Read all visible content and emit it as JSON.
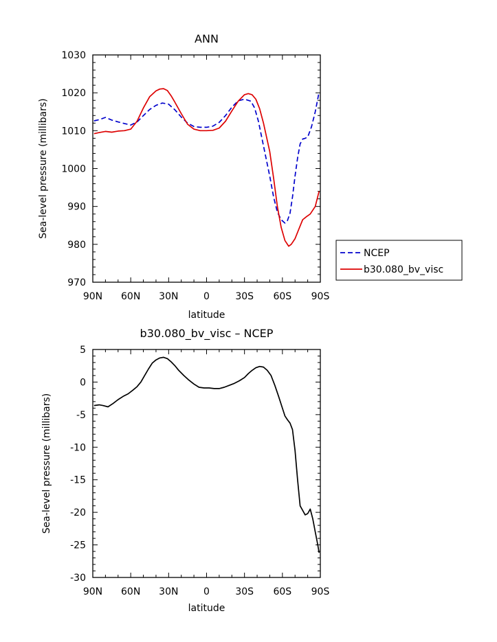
{
  "chart_data": [
    {
      "type": "line",
      "title": "ANN",
      "xlabel": "latitude",
      "ylabel": "Sea-level pressure (millibars)",
      "xlim": [
        90,
        -90
      ],
      "ylim": [
        970,
        1030
      ],
      "x_ticks": [
        90,
        60,
        30,
        0,
        -30,
        -60,
        -90
      ],
      "x_tick_labels": [
        "90N",
        "60N",
        "30N",
        "0",
        "30S",
        "60S",
        "90S"
      ],
      "y_ticks": [
        970,
        980,
        990,
        1000,
        1010,
        1020,
        1030
      ],
      "y_tick_labels": [
        "970",
        "980",
        "990",
        "1000",
        "1010",
        "1020",
        "1030"
      ],
      "grid": false,
      "legend_position": "right, outside plot area",
      "series": [
        {
          "name": "NCEP",
          "color": "#0000cc",
          "dash": "dashed",
          "x": [
            89,
            85,
            80,
            75,
            70,
            65,
            60,
            55,
            50,
            45,
            40,
            35,
            30,
            25,
            20,
            15,
            10,
            5,
            0,
            -5,
            -10,
            -15,
            -20,
            -25,
            -30,
            -35,
            -38,
            -41,
            -45,
            -50,
            -53,
            -56,
            -59,
            -62,
            -64,
            -66,
            -68,
            -70,
            -72,
            -74,
            -76,
            -78,
            -80,
            -83,
            -86,
            -89
          ],
          "y": [
            1012.6,
            1012.9,
            1013.5,
            1012.8,
            1012.3,
            1011.9,
            1011.5,
            1012.3,
            1014.0,
            1015.6,
            1016.7,
            1017.3,
            1017.0,
            1015.5,
            1013.6,
            1012.0,
            1011.1,
            1010.9,
            1010.9,
            1011.2,
            1012.2,
            1014.0,
            1016.2,
            1017.9,
            1018.3,
            1017.8,
            1016.0,
            1012.5,
            1006.0,
            998.0,
            992.5,
            988.5,
            986.5,
            985.6,
            986.3,
            988.2,
            992.5,
            998.0,
            1002.8,
            1006.5,
            1007.8,
            1008.0,
            1008.3,
            1011.0,
            1015.0,
            1020.2
          ]
        },
        {
          "name": "b30.080_bv_visc",
          "color": "#dd0000",
          "dash": "solid",
          "x": [
            89,
            85,
            80,
            75,
            70,
            65,
            60,
            55,
            50,
            45,
            40,
            37,
            34,
            31,
            28,
            25,
            20,
            15,
            10,
            5,
            0,
            -5,
            -10,
            -15,
            -20,
            -25,
            -30,
            -33,
            -36,
            -39,
            -42,
            -45,
            -50,
            -53,
            -56,
            -59,
            -62,
            -65,
            -67,
            -70,
            -73,
            -76,
            -79,
            -82,
            -86,
            -89
          ],
          "y": [
            1009.2,
            1009.5,
            1009.8,
            1009.6,
            1009.9,
            1010.0,
            1010.4,
            1012.5,
            1016.0,
            1019.0,
            1020.5,
            1021.0,
            1021.1,
            1020.6,
            1019.2,
            1017.5,
            1014.5,
            1011.7,
            1010.4,
            1010.0,
            1010.0,
            1010.1,
            1010.7,
            1012.5,
            1015.2,
            1017.8,
            1019.5,
            1019.8,
            1019.5,
            1018.3,
            1015.8,
            1012.0,
            1004.5,
            997.5,
            990.0,
            984.5,
            981.0,
            979.5,
            980.0,
            981.5,
            984.0,
            986.5,
            987.3,
            988.0,
            990.0,
            994.0
          ]
        }
      ]
    },
    {
      "type": "line",
      "title": "b30.080_bv_visc – NCEP",
      "xlabel": "latitude",
      "ylabel": "Sea-level pressure (millibars)",
      "xlim": [
        90,
        -90
      ],
      "ylim": [
        -30,
        5
      ],
      "x_ticks": [
        90,
        60,
        30,
        0,
        -30,
        -60,
        -90
      ],
      "x_tick_labels": [
        "90N",
        "60N",
        "30N",
        "0",
        "30S",
        "60S",
        "90S"
      ],
      "y_ticks": [
        -30,
        -25,
        -20,
        -15,
        -10,
        -5,
        0,
        5
      ],
      "y_tick_labels": [
        "-30",
        "-25",
        "-20",
        "-15",
        "-10",
        "-5",
        "0",
        "5"
      ],
      "grid": false,
      "series": [
        {
          "color": "#000000",
          "dash": "solid",
          "x": [
            89,
            85,
            82,
            78,
            74,
            70,
            66,
            62,
            58,
            55,
            52,
            49,
            46,
            43,
            40,
            37,
            34,
            31,
            28,
            25,
            22,
            18,
            14,
            10,
            6,
            2,
            -2,
            -6,
            -10,
            -14,
            -18,
            -22,
            -26,
            -30,
            -33,
            -36,
            -39,
            -42,
            -45,
            -48,
            -51,
            -54,
            -57,
            -60,
            -62,
            -64,
            -66,
            -68,
            -70,
            -72,
            -74,
            -76,
            -78,
            -80,
            -82,
            -84,
            -86,
            -88,
            -89
          ],
          "y": [
            -3.6,
            -3.5,
            -3.6,
            -3.8,
            -3.3,
            -2.7,
            -2.2,
            -1.8,
            -1.2,
            -0.7,
            0.0,
            1.0,
            2.0,
            2.9,
            3.4,
            3.7,
            3.8,
            3.6,
            3.1,
            2.5,
            1.8,
            1.0,
            0.3,
            -0.3,
            -0.8,
            -0.9,
            -0.9,
            -1.0,
            -1.0,
            -0.8,
            -0.5,
            -0.2,
            0.2,
            0.7,
            1.3,
            1.8,
            2.2,
            2.4,
            2.3,
            1.8,
            1.0,
            -0.5,
            -2.2,
            -4.0,
            -5.2,
            -5.8,
            -6.3,
            -7.3,
            -10.5,
            -15.0,
            -19.0,
            -19.7,
            -20.4,
            -20.2,
            -19.5,
            -21.0,
            -23.0,
            -25.0,
            -26.2
          ]
        }
      ]
    }
  ]
}
